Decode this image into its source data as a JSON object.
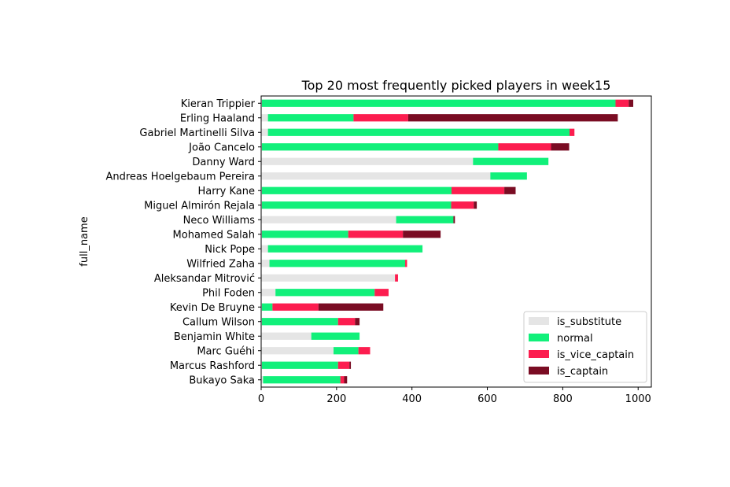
{
  "chart_data": {
    "type": "bar",
    "orientation": "horizontal",
    "stacked": true,
    "title": "Top 20 most frequently picked players in week15",
    "xlabel": "",
    "ylabel": "full_name",
    "xlim": [
      0,
      1035
    ],
    "xticks": [
      "0",
      "200",
      "400",
      "600",
      "800",
      "1000"
    ],
    "xtick_values": [
      0,
      200,
      400,
      600,
      800,
      1000
    ],
    "grid": false,
    "legend_position": "lower-right",
    "categories": [
      "Kieran Trippier",
      "Erling Haaland",
      "Gabriel Martinelli Silva",
      "João Cancelo",
      "Danny Ward",
      "Andreas Hoelgebaum Pereira",
      "Harry Kane",
      "Miguel Almirón Rejala",
      "Neco Williams",
      "Mohamed Salah",
      "Nick Pope",
      "Wilfried Zaha",
      "Aleksandar Mitrović",
      "Phil Foden",
      "Kevin De Bruyne",
      "Callum Wilson",
      "Benjamin White",
      "Marc Guéhi",
      "Marcus Rashford",
      "Bukayo Saka"
    ],
    "series": [
      {
        "name": "is_substitute",
        "color": "#e5e5e5",
        "values": [
          2,
          18,
          18,
          2,
          562,
          608,
          2,
          2,
          358,
          2,
          18,
          22,
          355,
          38,
          2,
          2,
          133,
          192,
          2,
          5
        ]
      },
      {
        "name": "normal",
        "color": "#11f07a",
        "values": [
          938,
          227,
          800,
          627,
          200,
          97,
          503,
          502,
          152,
          229,
          410,
          360,
          0,
          263,
          28,
          202,
          128,
          66,
          202,
          205
        ]
      },
      {
        "name": "is_vice_captain",
        "color": "#fc1d4f",
        "values": [
          35,
          145,
          13,
          140,
          0,
          0,
          140,
          60,
          0,
          145,
          0,
          5,
          8,
          37,
          122,
          45,
          0,
          31,
          30,
          10
        ]
      },
      {
        "name": "is_captain",
        "color": "#7a0c23",
        "values": [
          12,
          556,
          0,
          48,
          0,
          0,
          30,
          8,
          4,
          100,
          0,
          0,
          0,
          0,
          172,
          12,
          0,
          0,
          4,
          8
        ]
      }
    ]
  }
}
